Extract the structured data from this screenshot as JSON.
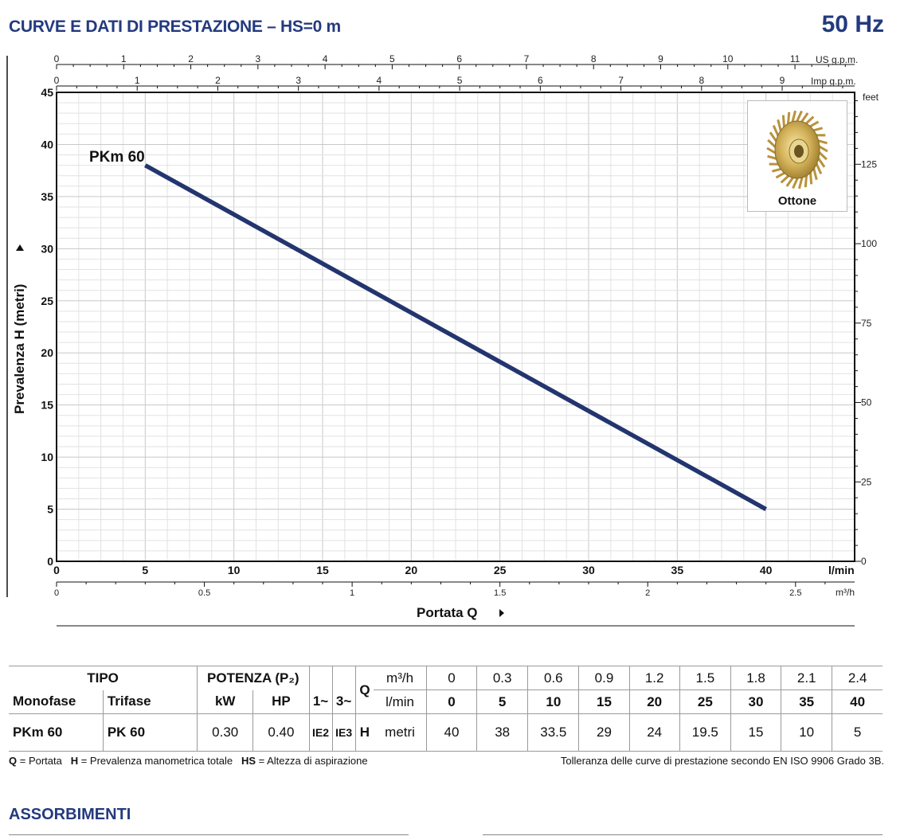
{
  "header": {
    "title": "CURVE E DATI DI PRESTAZIONE  –  HS=0 m",
    "frequency": "50 Hz"
  },
  "chart_data": {
    "type": "line",
    "series": [
      {
        "name": "PKm 60",
        "x": [
          5,
          40
        ],
        "y": [
          38,
          5
        ],
        "color": "#23356f"
      }
    ],
    "xlabel": "Portata  Q",
    "ylabel": "Prevalenza  H  (metri)",
    "x_unit": "l/min",
    "xlim": [
      0,
      45
    ],
    "ylim": [
      0,
      45
    ],
    "x_ticks": [
      "0",
      "5",
      "10",
      "15",
      "20",
      "25",
      "30",
      "35",
      "40"
    ],
    "y_ticks": [
      "0",
      "5",
      "10",
      "15",
      "20",
      "25",
      "30",
      "35",
      "40",
      "45"
    ],
    "top_axis_us": {
      "unit": "US g.p.m.",
      "ticks": [
        "0",
        "1",
        "2",
        "3",
        "4",
        "5",
        "6",
        "7",
        "8",
        "9",
        "10",
        "11"
      ]
    },
    "top_axis_imp": {
      "unit": "Imp g.p.m.",
      "ticks": [
        "0",
        "1",
        "2",
        "3",
        "4",
        "5",
        "6",
        "7",
        "8",
        "9"
      ]
    },
    "bottom_axis_m3h": {
      "unit": "m³/h",
      "ticks": [
        "0",
        "0.5",
        "1",
        "1.5",
        "2",
        "2.5"
      ]
    },
    "right_axis_feet": {
      "unit": "feet",
      "ticks": [
        "0",
        "25",
        "50",
        "75",
        "100",
        "125"
      ]
    },
    "grid": true,
    "legend_card": {
      "label": "Ottone",
      "icon": "brass-impeller-icon",
      "placement": "top-right"
    }
  },
  "table": {
    "tipo": "TIPO",
    "potenza": "POTENZA (P₂)",
    "monofase": "Monofase",
    "trifase": "Trifase",
    "kw": "kW",
    "hp": "HP",
    "one_phase": "1~",
    "three_phase": "3~",
    "q": "Q",
    "h": "H",
    "m3h_unit": "m³/h",
    "lmin_unit": "l/min",
    "metri_unit": "metri",
    "m3h_values": [
      "0",
      "0.3",
      "0.6",
      "0.9",
      "1.2",
      "1.5",
      "1.8",
      "2.1",
      "2.4"
    ],
    "lmin_values": [
      "0",
      "5",
      "10",
      "15",
      "20",
      "25",
      "30",
      "35",
      "40"
    ],
    "row": {
      "monofase": "PKm 60",
      "trifase": "PK 60",
      "kw": "0.30",
      "hp": "0.40",
      "ie_1": "IE2",
      "ie_3": "IE3",
      "h_values": [
        "40",
        "38",
        "33.5",
        "29",
        "24",
        "19.5",
        "15",
        "10",
        "5"
      ]
    }
  },
  "footnotes": {
    "legend_q": "Q",
    "legend_q_text": " = Portata   ",
    "legend_h": "H",
    "legend_h_text": " = Prevalenza manometrica totale   ",
    "legend_hs": "HS",
    "legend_hs_text": " = Altezza di aspirazione",
    "tolerance": "Tolleranza delle curve di prestazione secondo EN ISO 9906 Grado 3B."
  },
  "section": {
    "title": "ASSORBIMENTI"
  }
}
